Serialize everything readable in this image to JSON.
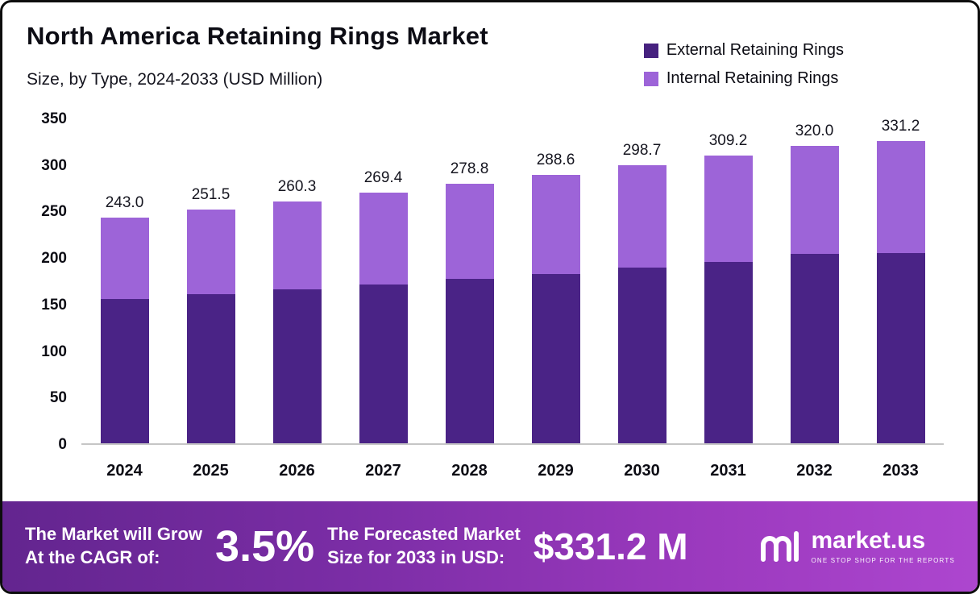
{
  "header": {
    "title": "North America Retaining Rings Market",
    "subtitle": "Size, by Type, 2024-2033 (USD Million)"
  },
  "legend": [
    {
      "label": "External Retaining Rings",
      "color": "#46217f"
    },
    {
      "label": "Internal Retaining Rings",
      "color": "#9d64d8"
    }
  ],
  "chart_data": {
    "type": "bar",
    "stacked": true,
    "title": "North America Retaining Rings Market Size, by Type, 2024-2033 (USD Million)",
    "categories": [
      "2024",
      "2025",
      "2026",
      "2027",
      "2028",
      "2029",
      "2030",
      "2031",
      "2032",
      "2033"
    ],
    "series": [
      {
        "name": "External Retaining Rings",
        "color": "#4a2386",
        "values": [
          155.0,
          160.0,
          165.5,
          170.5,
          176.5,
          182.0,
          188.5,
          195.0,
          204.0,
          210.5
        ]
      },
      {
        "name": "Internal Retaining Rings",
        "color": "#9d64d8",
        "values": [
          88.0,
          91.5,
          94.8,
          98.9,
          102.3,
          106.6,
          110.2,
          114.2,
          116.0,
          120.7
        ]
      }
    ],
    "totals": [
      243.0,
      251.5,
      260.3,
      269.4,
      278.8,
      288.6,
      298.7,
      309.2,
      320.0,
      331.2
    ],
    "xlabel": "",
    "ylabel": "",
    "ylim": [
      0,
      350
    ],
    "yticks": [
      0,
      50,
      100,
      150,
      200,
      250,
      300,
      350
    ],
    "grid": false,
    "legend_position": "top-right"
  },
  "footer": {
    "cagr_label": "The Market will Grow\nAt the CAGR of:",
    "cagr_value": "3.5%",
    "forecast_label": "The Forecasted Market\nSize for 2033 in USD:",
    "forecast_value": "$331.2 M",
    "brand": "market.us",
    "brand_tagline": "ONE STOP SHOP FOR THE REPORTS"
  }
}
